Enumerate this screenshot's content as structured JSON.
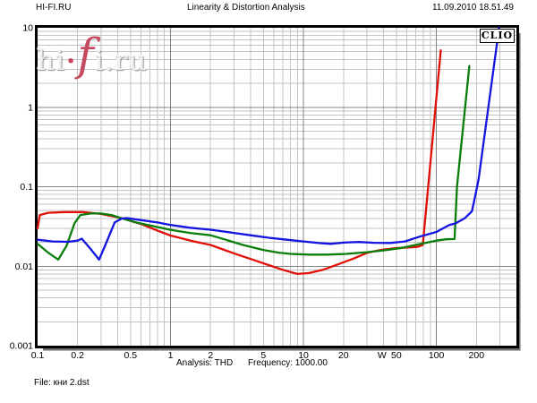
{
  "header": {
    "site": "HI-FI.RU",
    "title": "Linearity & Distortion Analysis",
    "datetime": "11.09.2010 18.51.49"
  },
  "brand_label": "CLIO",
  "watermark": {
    "part1": "hi",
    "dot": "·",
    "accent": "f",
    "part2": "i.ru"
  },
  "footer": {
    "analysis": "Analysis: THD",
    "frequency": "Frequency: 1000.00",
    "file": "File: кни 2.dst"
  },
  "chart_data": {
    "type": "line",
    "title": "Linearity & Distortion Analysis",
    "x_scale": "log",
    "y_scale": "log",
    "xlim": [
      0.1,
      400
    ],
    "ylim": [
      0.001,
      10
    ],
    "x_unit": {
      "label": "W",
      "anchor_value": 39
    },
    "x_ticks": [
      {
        "v": 0.1,
        "label": "0.1"
      },
      {
        "v": 0.2,
        "label": "0.2"
      },
      {
        "v": 0.5,
        "label": "0.5"
      },
      {
        "v": 1,
        "label": "1"
      },
      {
        "v": 2,
        "label": "2"
      },
      {
        "v": 5,
        "label": "5"
      },
      {
        "v": 10,
        "label": "10"
      },
      {
        "v": 20,
        "label": "20"
      },
      {
        "v": 50,
        "label": "50"
      },
      {
        "v": 100,
        "label": "100"
      },
      {
        "v": 200,
        "label": "200"
      }
    ],
    "y_ticks": [
      {
        "v": 10,
        "label": "10"
      },
      {
        "v": 1,
        "label": "1"
      },
      {
        "v": 0.1,
        "label": "0.1"
      },
      {
        "v": 0.01,
        "label": "0.01"
      },
      {
        "v": 0.001,
        "label": "0.001"
      }
    ],
    "grid": {
      "minor_color": "#c3c3c3",
      "major_color": "#848484",
      "frame_color": "#000000"
    },
    "series": [
      {
        "name": "red-curve",
        "color": "#e01008",
        "points": [
          [
            0.1,
            0.03
          ],
          [
            0.104,
            0.044
          ],
          [
            0.12,
            0.047
          ],
          [
            0.16,
            0.048
          ],
          [
            0.22,
            0.048
          ],
          [
            0.3,
            0.0455
          ],
          [
            0.42,
            0.0405
          ],
          [
            0.6,
            0.034
          ],
          [
            0.8,
            0.028
          ],
          [
            1.0,
            0.0243
          ],
          [
            1.5,
            0.0205
          ],
          [
            2.0,
            0.0185
          ],
          [
            3.0,
            0.0145
          ],
          [
            4.2,
            0.012
          ],
          [
            5.5,
            0.0103
          ],
          [
            7.0,
            0.009
          ],
          [
            9.0,
            0.008
          ],
          [
            11,
            0.0082
          ],
          [
            14,
            0.009
          ],
          [
            18,
            0.0105
          ],
          [
            24,
            0.0125
          ],
          [
            30,
            0.0147
          ],
          [
            38,
            0.016
          ],
          [
            48,
            0.0168
          ],
          [
            60,
            0.0172
          ],
          [
            72,
            0.0175
          ],
          [
            79,
            0.0185
          ],
          [
            108,
            5.2
          ]
        ]
      },
      {
        "name": "green-curve",
        "color": "#0a7d0a",
        "points": [
          [
            0.1,
            0.0191
          ],
          [
            0.12,
            0.0148
          ],
          [
            0.143,
            0.0121
          ],
          [
            0.165,
            0.018
          ],
          [
            0.19,
            0.035
          ],
          [
            0.21,
            0.044
          ],
          [
            0.25,
            0.046
          ],
          [
            0.3,
            0.046
          ],
          [
            0.36,
            0.044
          ],
          [
            0.42,
            0.0405
          ],
          [
            0.55,
            0.0355
          ],
          [
            0.7,
            0.0325
          ],
          [
            1.0,
            0.0287
          ],
          [
            1.4,
            0.0262
          ],
          [
            2.0,
            0.0245
          ],
          [
            2.6,
            0.0215
          ],
          [
            3.5,
            0.0185
          ],
          [
            5.0,
            0.016
          ],
          [
            6.5,
            0.0148
          ],
          [
            8.0,
            0.0143
          ],
          [
            11,
            0.014
          ],
          [
            15,
            0.014
          ],
          [
            21,
            0.0143
          ],
          [
            30,
            0.015
          ],
          [
            40,
            0.0158
          ],
          [
            55,
            0.017
          ],
          [
            75,
            0.019
          ],
          [
            100,
            0.021
          ],
          [
            118,
            0.0218
          ],
          [
            137,
            0.022
          ],
          [
            143,
            0.1
          ],
          [
            177,
            3.3
          ]
        ]
      },
      {
        "name": "blue-curve",
        "color": "#1414e0",
        "points": [
          [
            0.1,
            0.0215
          ],
          [
            0.13,
            0.0205
          ],
          [
            0.17,
            0.0203
          ],
          [
            0.2,
            0.021
          ],
          [
            0.215,
            0.0222
          ],
          [
            0.25,
            0.0165
          ],
          [
            0.29,
            0.0121
          ],
          [
            0.33,
            0.02
          ],
          [
            0.38,
            0.0355
          ],
          [
            0.43,
            0.0398
          ],
          [
            0.47,
            0.0403
          ],
          [
            0.6,
            0.038
          ],
          [
            0.8,
            0.0355
          ],
          [
            1.0,
            0.033
          ],
          [
            1.4,
            0.0305
          ],
          [
            2.0,
            0.0288
          ],
          [
            3.0,
            0.0262
          ],
          [
            4.0,
            0.0245
          ],
          [
            5.5,
            0.0228
          ],
          [
            7.5,
            0.0215
          ],
          [
            10,
            0.0205
          ],
          [
            13,
            0.0196
          ],
          [
            16,
            0.0191
          ],
          [
            20,
            0.0198
          ],
          [
            26,
            0.0202
          ],
          [
            34,
            0.0197
          ],
          [
            45,
            0.0196
          ],
          [
            58,
            0.0205
          ],
          [
            75,
            0.0236
          ],
          [
            100,
            0.027
          ],
          [
            125,
            0.033
          ],
          [
            140,
            0.0347
          ],
          [
            163,
            0.04
          ],
          [
            185,
            0.049
          ],
          [
            198,
            0.083
          ],
          [
            208,
            0.125
          ],
          [
            296,
            9.9
          ]
        ]
      }
    ]
  }
}
